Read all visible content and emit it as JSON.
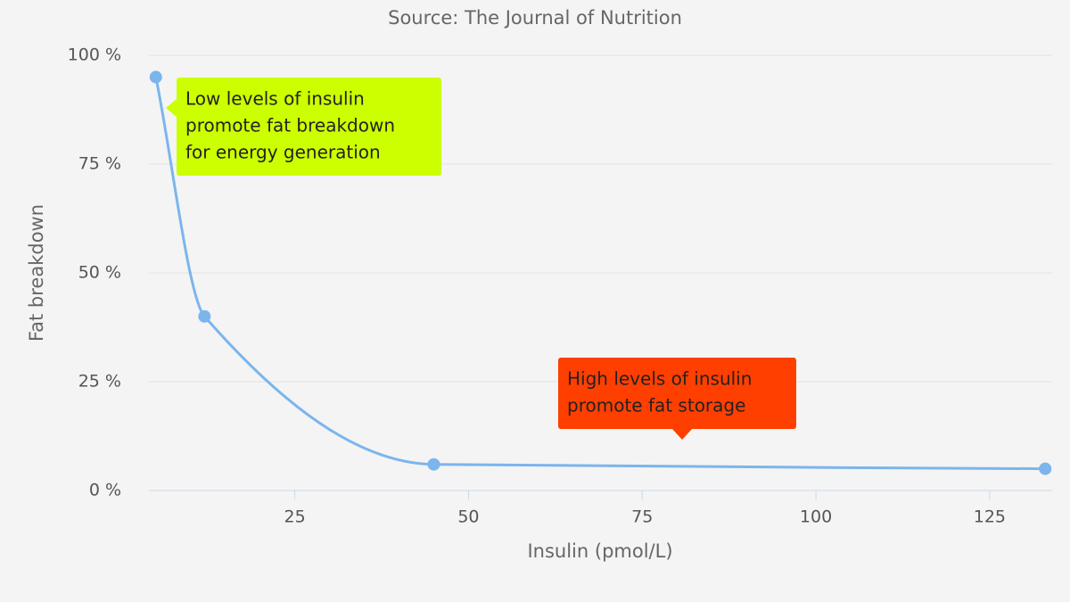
{
  "chart_data": {
    "type": "line",
    "subtitle": "Source: The Journal of Nutrition",
    "x_label": "Insulin (pmol/L)",
    "y_label": "Fat breakdown",
    "x": [
      5,
      12,
      45,
      133
    ],
    "series": [
      {
        "color": "#7cb5ec",
        "values": [
          95,
          40,
          6,
          5
        ]
      }
    ],
    "xlim": [
      4,
      134
    ],
    "ylim": [
      0,
      100
    ],
    "xticks": [
      25,
      50,
      75,
      100,
      125
    ],
    "yticks": [
      {
        "value": 0,
        "label": "0 %"
      },
      {
        "value": 25,
        "label": "25 %"
      },
      {
        "value": 50,
        "label": "50 %"
      },
      {
        "value": 75,
        "label": "75 %"
      },
      {
        "value": 100,
        "label": "100 %"
      }
    ],
    "grid": true,
    "annotations": [
      {
        "lines": [
          "Low levels of insulin",
          "promote fat breakdown",
          "for energy generation"
        ],
        "color": "#ccff00"
      },
      {
        "lines": [
          "High levels of insulin",
          "promote fat storage"
        ],
        "color": "#ff3f00"
      }
    ]
  }
}
